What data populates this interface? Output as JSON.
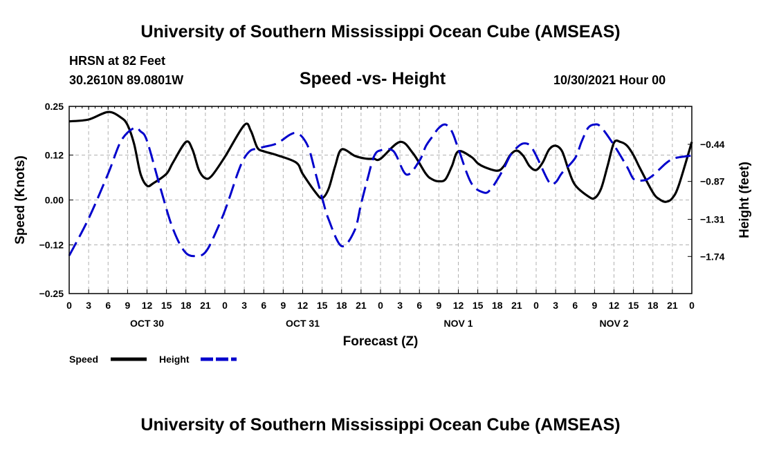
{
  "page": {
    "title_top": "University of Southern Mississippi Ocean Cube (AMSEAS)",
    "title_bottom": "University of Southern Mississippi Ocean Cube (AMSEAS)",
    "station": "HRSN at 82 Feet",
    "coords": "30.2610N  89.0801W",
    "subtitle": "Speed -vs- Height",
    "datetime": "10/30/2021 Hour 00"
  },
  "colors": {
    "speed": "#000000",
    "height": "#0000cc",
    "grid": "#b0b0b0"
  },
  "chart_data": {
    "type": "line",
    "title": "Speed -vs- Height",
    "xlabel": "Forecast (Z)",
    "ylabel_left": "Speed (Knots)",
    "ylabel_right": "Height (feet)",
    "x_range": [
      0,
      96
    ],
    "x_tick_labels": [
      "0",
      "3",
      "6",
      "9",
      "12",
      "15",
      "18",
      "21",
      "0",
      "3",
      "6",
      "9",
      "12",
      "15",
      "18",
      "21",
      "0",
      "3",
      "6",
      "9",
      "12",
      "15",
      "18",
      "21",
      "0",
      "3",
      "6",
      "9",
      "12",
      "15",
      "18",
      "21",
      "0"
    ],
    "day_labels": [
      {
        "label": "OCT 30",
        "hour": 12
      },
      {
        "label": "OCT 31",
        "hour": 36
      },
      {
        "label": "NOV 1",
        "hour": 60
      },
      {
        "label": "NOV 2",
        "hour": 84
      }
    ],
    "left_axis": {
      "range": [
        -0.25,
        0.25
      ],
      "ticks": [
        -0.25,
        -0.12,
        0.0,
        0.12,
        0.25
      ],
      "tick_labels": [
        "−0.25",
        "−0.12",
        "0.00",
        "0.12",
        "0.25"
      ]
    },
    "right_axis": {
      "range": [
        -2.17,
        0.0
      ],
      "ticks": [
        -1.74,
        -1.31,
        -0.87,
        -0.44
      ],
      "tick_labels": [
        "−1.74",
        "−1.31",
        "−0.87",
        "−0.44"
      ]
    },
    "series": [
      {
        "name": "Speed",
        "axis": "left",
        "style": "solid",
        "x": [
          0,
          3,
          6,
          8,
          9,
          10,
          11,
          12,
          13,
          15,
          16,
          18,
          19,
          20,
          21,
          22,
          24,
          27,
          28,
          29,
          30,
          32,
          35,
          36,
          38,
          39,
          40,
          41,
          42,
          44,
          45,
          46,
          47,
          48,
          51,
          53,
          55,
          56,
          57,
          58,
          59,
          60,
          62,
          63,
          64,
          66,
          67,
          68,
          69,
          70,
          71,
          72,
          73,
          74,
          75,
          76,
          77,
          78,
          80,
          81,
          82,
          83,
          84,
          85,
          86,
          87,
          88,
          90,
          91,
          92,
          93,
          94,
          96
        ],
        "y": [
          0.21,
          0.215,
          0.235,
          0.22,
          0.2,
          0.15,
          0.07,
          0.038,
          0.045,
          0.07,
          0.1,
          0.155,
          0.135,
          0.08,
          0.058,
          0.065,
          0.115,
          0.2,
          0.185,
          0.14,
          0.13,
          0.12,
          0.1,
          0.07,
          0.02,
          0.005,
          0.03,
          0.09,
          0.135,
          0.118,
          0.113,
          0.11,
          0.11,
          0.11,
          0.155,
          0.125,
          0.07,
          0.055,
          0.05,
          0.055,
          0.09,
          0.13,
          0.115,
          0.098,
          0.088,
          0.078,
          0.09,
          0.12,
          0.132,
          0.118,
          0.09,
          0.08,
          0.1,
          0.135,
          0.145,
          0.13,
          0.08,
          0.04,
          0.01,
          0.005,
          0.03,
          0.09,
          0.153,
          0.155,
          0.145,
          0.12,
          0.085,
          0.02,
          0.002,
          -0.005,
          0.005,
          0.04,
          0.155
        ]
      },
      {
        "name": "Height",
        "axis": "right",
        "style": "dashed",
        "x": [
          0,
          3,
          6,
          8,
          10,
          11,
          12,
          14,
          16,
          18,
          20,
          21,
          22,
          24,
          26,
          27,
          28,
          29,
          30,
          32,
          34,
          35,
          36,
          37,
          38,
          39,
          40,
          42,
          44,
          45,
          46,
          47,
          48,
          50,
          52,
          54,
          55,
          56,
          57,
          58,
          59,
          60,
          62,
          64,
          65,
          66,
          67,
          68,
          69,
          70,
          71,
          72,
          74,
          75,
          76,
          78,
          79,
          80,
          81,
          82,
          84,
          86,
          87,
          88,
          89,
          90,
          91,
          92,
          93,
          94,
          96
        ],
        "y": [
          -1.73,
          -1.3,
          -0.78,
          -0.4,
          -0.25,
          -0.29,
          -0.4,
          -0.93,
          -1.42,
          -1.7,
          -1.73,
          -1.69,
          -1.56,
          -1.21,
          -0.77,
          -0.6,
          -0.51,
          -0.49,
          -0.47,
          -0.43,
          -0.33,
          -0.31,
          -0.36,
          -0.5,
          -0.78,
          -1.06,
          -1.31,
          -1.62,
          -1.44,
          -1.13,
          -0.84,
          -0.58,
          -0.51,
          -0.52,
          -0.79,
          -0.63,
          -0.46,
          -0.35,
          -0.25,
          -0.21,
          -0.29,
          -0.49,
          -0.89,
          -1.0,
          -0.96,
          -0.85,
          -0.72,
          -0.57,
          -0.48,
          -0.43,
          -0.45,
          -0.57,
          -0.88,
          -0.88,
          -0.77,
          -0.6,
          -0.41,
          -0.25,
          -0.21,
          -0.24,
          -0.45,
          -0.7,
          -0.84,
          -0.86,
          -0.85,
          -0.8,
          -0.73,
          -0.66,
          -0.61,
          -0.59,
          -0.57
        ]
      }
    ],
    "legend": [
      {
        "label": "Speed",
        "style": "solid"
      },
      {
        "label": "Height",
        "style": "dashed"
      }
    ]
  }
}
